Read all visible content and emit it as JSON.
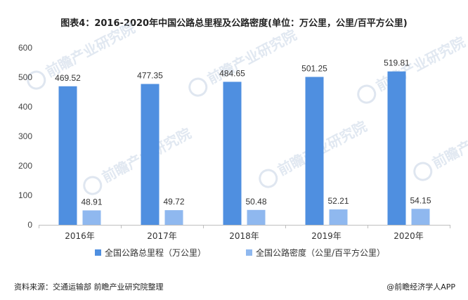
{
  "title": "图表4：2016-2020年中国公路总里程及公路密度(单位：万公里，公里/百平方公里)",
  "chart_data": {
    "type": "bar",
    "categories": [
      "2016年",
      "2017年",
      "2018年",
      "2019年",
      "2020年"
    ],
    "series": [
      {
        "name": "全国公路总里程（万公里）",
        "values": [
          469.52,
          477.35,
          484.65,
          501.25,
          519.81
        ],
        "color": "#4f8fe0"
      },
      {
        "name": "全国公路密度（公里/百平方公里）",
        "values": [
          48.91,
          49.72,
          50.48,
          52.21,
          54.15
        ],
        "color": "#8fb8ef"
      }
    ],
    "ylim": [
      0,
      600
    ],
    "yticks": [
      "0",
      "100",
      "200",
      "300",
      "400",
      "500",
      "600"
    ],
    "grid": false,
    "legend_position": "bottom"
  },
  "source": "资料来源：交通运输部 前瞻产业研究院整理",
  "brand": "@前瞻经济学人APP",
  "watermark": "前瞻产业研究院"
}
